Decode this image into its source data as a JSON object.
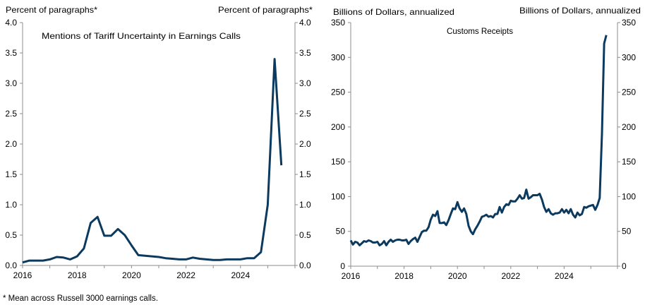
{
  "chart_data": [
    {
      "type": "line",
      "title": "Mentions of Tariff Uncertainty in Earnings Calls",
      "ylabel_left": "Percent of paragraphs*",
      "ylabel_right": "Percent of paragraphs*",
      "xlim": [
        2016,
        2026
      ],
      "ylim": [
        0,
        4
      ],
      "yticks": [
        "0.0",
        "0.5",
        "1.0",
        "1.5",
        "2.0",
        "2.5",
        "3.0",
        "3.5",
        "4.0"
      ],
      "xticks": [
        "2016",
        "2018",
        "2020",
        "2022",
        "2024"
      ],
      "frequency": "quarterly",
      "x_start": 2016,
      "series": [
        {
          "name": "Tariff uncertainty mentions",
          "color": "#0b3a5e",
          "values": [
            0.05,
            0.08,
            0.08,
            0.08,
            0.1,
            0.14,
            0.13,
            0.1,
            0.15,
            0.28,
            0.7,
            0.8,
            0.49,
            0.49,
            0.6,
            0.5,
            0.33,
            0.17,
            0.16,
            0.15,
            0.14,
            0.12,
            0.11,
            0.1,
            0.1,
            0.13,
            0.11,
            0.1,
            0.09,
            0.09,
            0.1,
            0.1,
            0.1,
            0.12,
            0.12,
            0.22,
            1.0,
            3.4,
            1.65
          ]
        }
      ]
    },
    {
      "type": "line",
      "title": "Customs Receipts",
      "ylabel_left": "Billions of Dollars, annualized",
      "ylabel_right": "Billions of Dollars, annualized",
      "xlim": [
        2016,
        2026
      ],
      "ylim": [
        0,
        350
      ],
      "yticks": [
        "0",
        "50",
        "100",
        "150",
        "200",
        "250",
        "300",
        "350"
      ],
      "xticks": [
        "2016",
        "2018",
        "2020",
        "2022",
        "2024"
      ],
      "frequency": "monthly",
      "x_start": 2016,
      "series": [
        {
          "name": "Customs receipts",
          "color": "#0b3a5e",
          "values": [
            37,
            31,
            35,
            34,
            30,
            33,
            36,
            35,
            37,
            36,
            34,
            34,
            35,
            30,
            32,
            36,
            30,
            35,
            38,
            35,
            37,
            38,
            38,
            37,
            37,
            38,
            32,
            36,
            39,
            41,
            35,
            42,
            49,
            51,
            51,
            56,
            67,
            74,
            72,
            79,
            62,
            62,
            63,
            59,
            66,
            75,
            83,
            82,
            92,
            83,
            78,
            83,
            75,
            58,
            50,
            46,
            53,
            58,
            64,
            71,
            72,
            74,
            71,
            72,
            70,
            75,
            75,
            85,
            77,
            85,
            89,
            88,
            94,
            93,
            93,
            97,
            102,
            97,
            98,
            110,
            97,
            99,
            102,
            102,
            102,
            104,
            96,
            85,
            78,
            82,
            76,
            74,
            76,
            76,
            77,
            82,
            77,
            81,
            76,
            82,
            74,
            70,
            77,
            73,
            75,
            85,
            84,
            86,
            87,
            88,
            81,
            88,
            98,
            190,
            320,
            332
          ]
        }
      ]
    }
  ],
  "footnote": "* Mean across Russell 3000 earnings calls."
}
